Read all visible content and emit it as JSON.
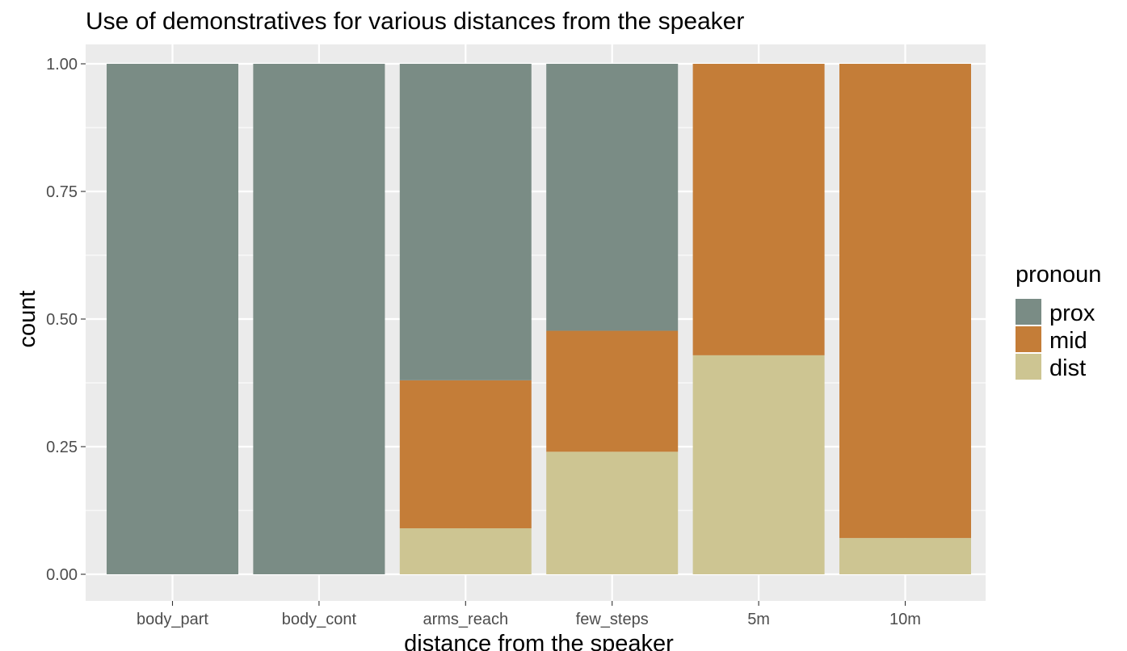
{
  "chart_data": {
    "type": "bar",
    "stacking": "fill",
    "title": "Use of demonstratives for various distances from the speaker",
    "xlabel": "distance from the speaker",
    "ylabel": "count",
    "categories": [
      "body_part",
      "body_cont",
      "arms_reach",
      "few_steps",
      "5m",
      "10m"
    ],
    "series": [
      {
        "name": "prox",
        "color": "#7a8c85",
        "values": [
          1.0,
          1.0,
          0.62,
          0.523,
          0.0,
          0.0
        ]
      },
      {
        "name": "mid",
        "color": "#c47d38",
        "values": [
          0.0,
          0.0,
          0.29,
          0.237,
          0.571,
          0.929
        ]
      },
      {
        "name": "dist",
        "color": "#cdc592",
        "values": [
          0.0,
          0.0,
          0.09,
          0.24,
          0.429,
          0.071
        ]
      }
    ],
    "stack_order_bottom_to_top": [
      "dist",
      "mid",
      "prox"
    ],
    "ylim": [
      0,
      1
    ],
    "yticks": [
      "0.00",
      "0.25",
      "0.50",
      "0.75",
      "1.00"
    ],
    "grid": true,
    "panel_background": "#ebebeb",
    "gridline_color": "#ffffff",
    "legend": {
      "title": "pronoun",
      "position": "right",
      "items": [
        "prox",
        "mid",
        "dist"
      ]
    }
  }
}
